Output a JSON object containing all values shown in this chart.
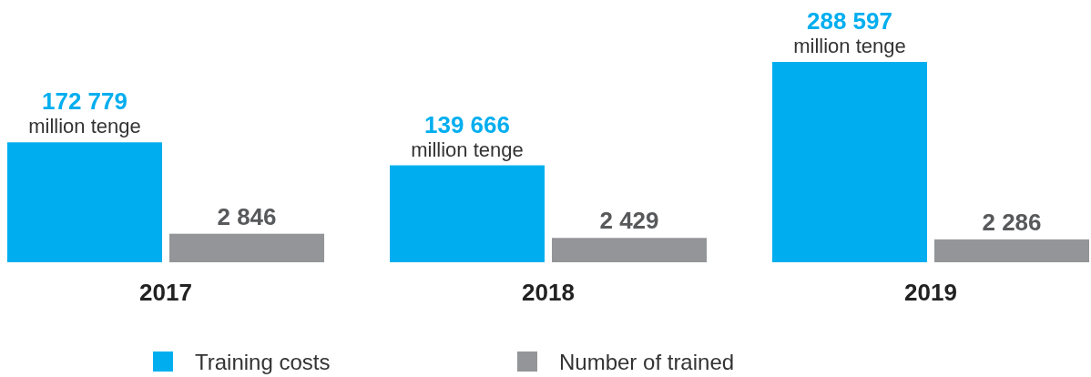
{
  "chart_data": {
    "type": "bar",
    "categories": [
      "2017",
      "2018",
      "2019"
    ],
    "series": [
      {
        "name": "Training costs",
        "color": "#00aeef",
        "values": [
          172779,
          139666,
          288597
        ],
        "value_labels": [
          "172 779",
          "139 666",
          "288 597"
        ]
      },
      {
        "name": "Number of trained",
        "color": "#939598",
        "axis": "y2",
        "values": [
          2846,
          2429,
          2286
        ],
        "value_labels": [
          "2 846",
          "2 429",
          "2 286"
        ]
      }
    ],
    "annotations": [
      {
        "text": "million tenge",
        "x": "2017",
        "y": 172779
      },
      {
        "text": "million tenge",
        "x": "2018",
        "y": 139666
      },
      {
        "text": "million tenge",
        "x": "2019",
        "y": 288597
      }
    ],
    "ylim": [
      0,
      288597
    ],
    "y2lim": [
      0,
      20000
    ],
    "legend": "bottom"
  }
}
